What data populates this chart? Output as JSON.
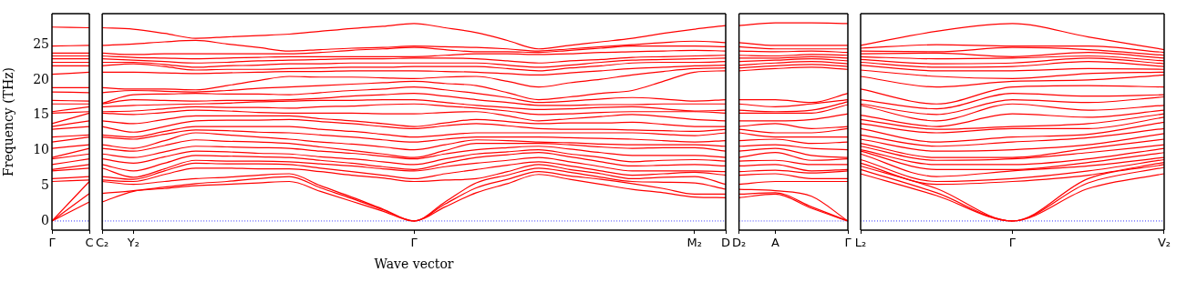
{
  "chart_data": [
    {
      "type": "line",
      "ylabel": "Frequency (THz)",
      "categories": [
        "Γ",
        "C"
      ],
      "ylim": [
        -1.3,
        29.4
      ],
      "yticks": [
        0,
        5,
        10,
        15,
        20,
        25
      ],
      "marker": "none",
      "line_style": "solid",
      "ref_lines": [
        {
          "axis": "y",
          "value": 0,
          "color": "#0000ff",
          "line_style": "dotted"
        }
      ],
      "series": [
        {
          "color": "#ff0000",
          "values": [
            0,
            2.7
          ]
        },
        {
          "color": "#ff0000",
          "values": [
            0,
            3.9
          ]
        },
        {
          "color": "#ff0000",
          "values": [
            0,
            5.6
          ]
        },
        {
          "color": "#ff0000",
          "values": [
            5.6,
            5.8
          ]
        },
        {
          "color": "#ff0000",
          "values": [
            6.0,
            6.3
          ]
        },
        {
          "color": "#ff0000",
          "values": [
            7.1,
            7.5
          ]
        },
        {
          "color": "#ff0000",
          "values": [
            7.3,
            8.0
          ]
        },
        {
          "color": "#ff0000",
          "values": [
            8.0,
            8.8
          ]
        },
        {
          "color": "#ff0000",
          "values": [
            8.8,
            9.5
          ]
        },
        {
          "color": "#ff0000",
          "values": [
            9.0,
            10.3
          ]
        },
        {
          "color": "#ff0000",
          "values": [
            10.3,
            10.8
          ]
        },
        {
          "color": "#ff0000",
          "values": [
            11.2,
            11.9
          ]
        },
        {
          "color": "#ff0000",
          "values": [
            11.9,
            12.2
          ]
        },
        {
          "color": "#ff0000",
          "values": [
            13.0,
            13.4
          ]
        },
        {
          "color": "#ff0000",
          "values": [
            13.4,
            14.2
          ]
        },
        {
          "color": "#ff0000",
          "values": [
            13.8,
            15.3
          ]
        },
        {
          "color": "#ff0000",
          "values": [
            15.3,
            15.5
          ]
        },
        {
          "color": "#ff0000",
          "values": [
            15.5,
            16.2
          ]
        },
        {
          "color": "#ff0000",
          "values": [
            16.6,
            16.6
          ]
        },
        {
          "color": "#ff0000",
          "values": [
            17.1,
            17.0
          ]
        },
        {
          "color": "#ff0000",
          "values": [
            18.3,
            18.2
          ]
        },
        {
          "color": "#ff0000",
          "values": [
            18.9,
            18.9
          ]
        },
        {
          "color": "#ff0000",
          "values": [
            20.8,
            21.1
          ]
        },
        {
          "color": "#ff0000",
          "values": [
            22.0,
            22.0
          ]
        },
        {
          "color": "#ff0000",
          "values": [
            22.5,
            22.5
          ]
        },
        {
          "color": "#ff0000",
          "values": [
            23.0,
            23.0
          ]
        },
        {
          "color": "#ff0000",
          "values": [
            23.4,
            23.4
          ]
        },
        {
          "color": "#ff0000",
          "values": [
            23.8,
            23.8
          ]
        },
        {
          "color": "#ff0000",
          "values": [
            24.8,
            24.9
          ]
        },
        {
          "color": "#ff0000",
          "values": [
            27.5,
            27.4
          ]
        }
      ]
    },
    {
      "type": "line",
      "xlabel": "Wave vector",
      "tick_labels": "x",
      "categories": [
        "C₂",
        "Y₂",
        null,
        null,
        null,
        null,
        null,
        null,
        null,
        null,
        "Γ",
        null,
        null,
        null,
        null,
        null,
        null,
        null,
        null,
        "M₂",
        "D"
      ],
      "ylim": [
        -1.3,
        29.4
      ],
      "yticks": [
        0,
        5,
        10,
        15,
        20,
        25
      ],
      "marker": "none",
      "line_style": "solid",
      "ref_lines": [
        {
          "axis": "y",
          "value": 0,
          "color": "#0000ff",
          "line_style": "dotted"
        }
      ],
      "series": [
        {
          "color": "#ff0000",
          "values": [
            2.7,
            4.2,
            4.6,
            5.0,
            5.2,
            5.4,
            5.6,
            4.2,
            2.8,
            1.4,
            0,
            2.0,
            4.0,
            5.3,
            6.6,
            5.9,
            5.2,
            4.5,
            4.0,
            3.4,
            3.3
          ]
        },
        {
          "color": "#ff0000",
          "values": [
            3.9,
            4.3,
            4.8,
            5.3,
            5.6,
            6.0,
            6.3,
            4.7,
            3.2,
            1.6,
            0,
            2.4,
            4.7,
            5.9,
            7.0,
            6.4,
            5.9,
            5.3,
            4.6,
            3.8,
            3.8
          ]
        },
        {
          "color": "#ff0000",
          "values": [
            5.6,
            5.2,
            5.6,
            6.0,
            6.2,
            6.5,
            6.7,
            5.0,
            3.4,
            1.7,
            0,
            2.7,
            5.4,
            6.5,
            7.5,
            6.9,
            6.2,
            5.6,
            5.5,
            5.4,
            4.5
          ]
        },
        {
          "color": "#ff0000",
          "values": [
            5.8,
            5.6,
            6.6,
            7.5,
            7.5,
            7.4,
            7.4,
            7.0,
            6.5,
            6.1,
            5.6,
            5.8,
            6.0,
            7.0,
            8.0,
            7.3,
            6.7,
            6.0,
            6.2,
            6.3,
            5.2
          ]
        },
        {
          "color": "#ff0000",
          "values": [
            6.3,
            5.9,
            7.1,
            8.2,
            8.1,
            8.1,
            8.0,
            7.5,
            7.0,
            6.5,
            6.0,
            6.7,
            7.3,
            7.9,
            8.4,
            7.8,
            7.1,
            6.5,
            6.7,
            6.9,
            6.5
          ]
        },
        {
          "color": "#ff0000",
          "values": [
            7.5,
            6.2,
            7.4,
            8.6,
            8.5,
            8.5,
            8.4,
            8.1,
            7.8,
            7.4,
            7.1,
            7.7,
            8.2,
            8.6,
            9.0,
            8.4,
            7.7,
            7.1,
            7.1,
            7.1,
            7.0
          ]
        },
        {
          "color": "#ff0000",
          "values": [
            8.0,
            7.1,
            8.2,
            9.3,
            9.2,
            9.1,
            9.0,
            8.6,
            8.2,
            7.7,
            7.3,
            8.2,
            9.0,
            9.4,
            9.7,
            9.1,
            8.4,
            7.8,
            7.9,
            8.0,
            7.8
          ]
        },
        {
          "color": "#ff0000",
          "values": [
            8.8,
            8.2,
            9.1,
            9.9,
            9.8,
            9.6,
            9.5,
            9.1,
            8.8,
            8.4,
            8.0,
            8.8,
            9.5,
            9.8,
            10.1,
            9.5,
            9.0,
            8.4,
            8.6,
            8.7,
            8.5
          ]
        },
        {
          "color": "#ff0000",
          "values": [
            9.5,
            9.0,
            9.8,
            10.6,
            10.5,
            10.4,
            10.3,
            9.9,
            9.6,
            9.2,
            8.8,
            9.5,
            10.1,
            10.4,
            10.6,
            10.2,
            9.7,
            9.3,
            9.3,
            9.3,
            9.0
          ]
        },
        {
          "color": "#ff0000",
          "values": [
            10.3,
            9.9,
            10.7,
            11.5,
            11.3,
            11.2,
            11.0,
            10.5,
            10.0,
            9.5,
            9.0,
            10.0,
            11.0,
            11.0,
            11.0,
            10.8,
            10.5,
            10.3,
            10.4,
            10.4,
            9.9
          ]
        },
        {
          "color": "#ff0000",
          "values": [
            10.8,
            10.3,
            11.4,
            12.5,
            12.2,
            11.9,
            11.6,
            11.2,
            10.9,
            10.5,
            10.1,
            10.8,
            11.5,
            11.4,
            11.2,
            11.1,
            10.9,
            10.8,
            10.8,
            10.8,
            10.6
          ]
        },
        {
          "color": "#ff0000",
          "values": [
            11.9,
            11.6,
            12.3,
            12.9,
            12.8,
            12.6,
            12.5,
            12.2,
            11.9,
            11.5,
            11.2,
            11.6,
            11.9,
            11.9,
            11.9,
            11.8,
            11.7,
            11.6,
            11.4,
            11.2,
            11.4
          ]
        },
        {
          "color": "#ff0000",
          "values": [
            12.2,
            11.9,
            12.7,
            13.4,
            13.4,
            13.4,
            13.4,
            13.0,
            12.7,
            12.3,
            11.9,
            12.2,
            12.5,
            12.5,
            12.5,
            12.5,
            12.5,
            12.5,
            12.3,
            12.1,
            12.5
          ]
        },
        {
          "color": "#ff0000",
          "values": [
            13.4,
            12.6,
            13.4,
            14.2,
            14.3,
            14.3,
            14.4,
            14.1,
            13.8,
            13.4,
            13.1,
            13.5,
            13.8,
            13.5,
            13.1,
            13.0,
            13.0,
            12.9,
            12.8,
            12.7,
            13.0
          ]
        },
        {
          "color": "#ff0000",
          "values": [
            14.2,
            13.8,
            14.4,
            14.9,
            14.9,
            14.9,
            14.9,
            14.5,
            14.2,
            13.8,
            13.4,
            13.9,
            14.4,
            14.1,
            13.8,
            13.9,
            13.9,
            14.0,
            13.7,
            13.4,
            13.4
          ]
        },
        {
          "color": "#ff0000",
          "values": [
            15.3,
            15.1,
            15.4,
            15.7,
            15.6,
            15.4,
            15.3,
            15.3,
            15.3,
            15.2,
            15.2,
            15.4,
            15.5,
            14.9,
            14.2,
            14.5,
            14.8,
            15.1,
            14.8,
            14.4,
            14.2
          ]
        },
        {
          "color": "#ff0000",
          "values": [
            15.5,
            15.6,
            15.9,
            16.2,
            16.1,
            16.1,
            16.0,
            16.2,
            16.3,
            16.5,
            16.6,
            16.3,
            16.0,
            15.6,
            15.1,
            15.2,
            15.4,
            15.5,
            15.5,
            15.5,
            15.3
          ]
        },
        {
          "color": "#ff0000",
          "values": [
            16.2,
            16.4,
            16.5,
            16.6,
            16.7,
            16.9,
            17.0,
            17.1,
            17.1,
            17.2,
            17.2,
            16.8,
            16.4,
            16.1,
            15.8,
            15.9,
            16.1,
            16.2,
            15.9,
            15.6,
            15.7
          ]
        },
        {
          "color": "#ff0000",
          "values": [
            16.6,
            17.2,
            17.1,
            17.0,
            17.1,
            17.1,
            17.2,
            17.4,
            17.7,
            17.9,
            18.1,
            17.7,
            17.2,
            16.8,
            16.4,
            16.4,
            16.5,
            16.5,
            16.6,
            16.6,
            16.6
          ]
        },
        {
          "color": "#ff0000",
          "values": [
            16.7,
            17.9,
            18.0,
            18.1,
            18.0,
            18.0,
            17.9,
            18.2,
            18.5,
            18.7,
            19.0,
            18.6,
            18.1,
            17.5,
            16.8,
            17.0,
            17.3,
            17.5,
            17.3,
            17.0,
            17.2
          ]
        },
        {
          "color": "#ff0000",
          "values": [
            18.2,
            18.5,
            18.4,
            18.3,
            18.5,
            18.8,
            19.0,
            19.2,
            19.4,
            19.6,
            19.8,
            19.5,
            19.2,
            18.2,
            17.2,
            17.6,
            18.1,
            18.5,
            19.8,
            21.1,
            21.3
          ]
        },
        {
          "color": "#ff0000",
          "values": [
            18.9,
            18.7,
            18.7,
            18.6,
            19.2,
            19.9,
            20.5,
            20.4,
            20.4,
            20.3,
            20.2,
            20.4,
            20.5,
            19.8,
            19.0,
            19.6,
            20.1,
            20.7,
            21.2,
            21.6,
            21.7
          ]
        },
        {
          "color": "#ff0000",
          "values": [
            21.1,
            21.1,
            21.0,
            20.9,
            21.0,
            21.1,
            21.2,
            21.2,
            21.3,
            21.3,
            21.3,
            21.2,
            21.1,
            20.9,
            20.7,
            21.0,
            21.3,
            21.6,
            21.8,
            22.0,
            22.1
          ]
        },
        {
          "color": "#ff0000",
          "values": [
            22.0,
            22.3,
            21.9,
            21.4,
            21.5,
            21.5,
            21.6,
            21.7,
            21.8,
            21.8,
            21.9,
            21.9,
            21.9,
            21.6,
            21.3,
            21.7,
            22.0,
            22.4,
            22.5,
            22.5,
            22.6
          ]
        },
        {
          "color": "#ff0000",
          "values": [
            22.5,
            22.5,
            22.2,
            21.8,
            22.0,
            22.1,
            22.3,
            22.3,
            22.4,
            22.4,
            22.4,
            22.4,
            22.4,
            22.1,
            21.8,
            22.1,
            22.5,
            22.8,
            22.9,
            23.0,
            23.1
          ]
        },
        {
          "color": "#ff0000",
          "values": [
            23.0,
            22.8,
            22.6,
            22.4,
            22.5,
            22.7,
            22.8,
            22.9,
            23.0,
            23.0,
            23.1,
            23.1,
            23.0,
            22.7,
            22.4,
            22.7,
            22.9,
            23.2,
            23.3,
            23.4,
            23.5
          ]
        },
        {
          "color": "#ff0000",
          "values": [
            23.4,
            23.2,
            23.1,
            23.0,
            23.1,
            23.2,
            23.3,
            23.3,
            23.3,
            23.3,
            23.3,
            23.5,
            23.7,
            23.7,
            23.6,
            23.7,
            23.9,
            24.0,
            24.1,
            24.2,
            24.1
          ]
        },
        {
          "color": "#ff0000",
          "values": [
            23.8,
            23.6,
            23.7,
            23.7,
            23.7,
            23.7,
            23.7,
            23.9,
            24.2,
            24.4,
            24.6,
            24.3,
            24.0,
            24.0,
            23.9,
            24.2,
            24.5,
            24.8,
            24.8,
            24.8,
            24.7
          ]
        },
        {
          "color": "#ff0000",
          "values": [
            24.9,
            25.1,
            25.4,
            25.6,
            25.1,
            24.6,
            24.1,
            24.3,
            24.5,
            24.6,
            24.8,
            24.7,
            24.6,
            24.4,
            24.1,
            24.4,
            24.7,
            25.0,
            25.3,
            25.5,
            25.3
          ]
        },
        {
          "color": "#ff0000",
          "values": [
            27.4,
            27.2,
            26.6,
            25.9,
            26.1,
            26.3,
            26.5,
            26.9,
            27.3,
            27.6,
            28.0,
            27.4,
            26.7,
            25.6,
            24.4,
            24.9,
            25.4,
            25.9,
            26.6,
            27.2,
            27.7
          ]
        }
      ]
    },
    {
      "type": "line",
      "tick_labels": "x",
      "categories": [
        "D₂",
        "A",
        null,
        "Γ"
      ],
      "ylim": [
        -1.3,
        29.4
      ],
      "yticks": [
        0,
        5,
        10,
        15,
        20,
        25
      ],
      "marker": "none",
      "line_style": "solid",
      "ref_lines": [
        {
          "axis": "y",
          "value": 0,
          "color": "#0000ff",
          "line_style": "dotted"
        }
      ],
      "series": [
        {
          "color": "#ff0000",
          "values": [
            3.3,
            3.8,
            1.8,
            0
          ]
        },
        {
          "color": "#ff0000",
          "values": [
            3.8,
            4.0,
            2.0,
            0
          ]
        },
        {
          "color": "#ff0000",
          "values": [
            4.5,
            4.3,
            3.5,
            0
          ]
        },
        {
          "color": "#ff0000",
          "values": [
            5.2,
            5.6,
            5.6,
            5.6
          ]
        },
        {
          "color": "#ff0000",
          "values": [
            6.5,
            6.7,
            6.0,
            6.0
          ]
        },
        {
          "color": "#ff0000",
          "values": [
            7.0,
            7.2,
            6.8,
            7.1
          ]
        },
        {
          "color": "#ff0000",
          "values": [
            7.8,
            8.0,
            7.1,
            7.3
          ]
        },
        {
          "color": "#ff0000",
          "values": [
            8.5,
            8.6,
            8.0,
            8.0
          ]
        },
        {
          "color": "#ff0000",
          "values": [
            9.0,
            9.7,
            8.6,
            8.8
          ]
        },
        {
          "color": "#ff0000",
          "values": [
            9.9,
            10.3,
            9.3,
            9.0
          ]
        },
        {
          "color": "#ff0000",
          "values": [
            10.6,
            10.8,
            10.3,
            10.1
          ]
        },
        {
          "color": "#ff0000",
          "values": [
            11.4,
            11.6,
            11.0,
            11.2
          ]
        },
        {
          "color": "#ff0000",
          "values": [
            12.5,
            11.9,
            11.9,
            11.9
          ]
        },
        {
          "color": "#ff0000",
          "values": [
            13.0,
            12.5,
            12.5,
            13.1
          ]
        },
        {
          "color": "#ff0000",
          "values": [
            13.4,
            13.8,
            13.1,
            13.4
          ]
        },
        {
          "color": "#ff0000",
          "values": [
            14.2,
            14.2,
            14.4,
            15.2
          ]
        },
        {
          "color": "#ff0000",
          "values": [
            15.3,
            15.3,
            15.3,
            16.5
          ]
        },
        {
          "color": "#ff0000",
          "values": [
            15.7,
            15.5,
            15.7,
            16.9
          ]
        },
        {
          "color": "#ff0000",
          "values": [
            16.6,
            16.2,
            16.6,
            17.2
          ]
        },
        {
          "color": "#ff0000",
          "values": [
            17.2,
            17.2,
            16.8,
            18.1
          ]
        },
        {
          "color": "#ff0000",
          "values": [
            21.3,
            21.6,
            21.8,
            21.5
          ]
        },
        {
          "color": "#ff0000",
          "values": [
            21.7,
            22.0,
            22.2,
            21.9
          ]
        },
        {
          "color": "#ff0000",
          "values": [
            22.1,
            22.4,
            22.6,
            22.3
          ]
        },
        {
          "color": "#ff0000",
          "values": [
            22.6,
            22.8,
            23.0,
            22.7
          ]
        },
        {
          "color": "#ff0000",
          "values": [
            23.1,
            23.1,
            23.3,
            23.1
          ]
        },
        {
          "color": "#ff0000",
          "values": [
            23.5,
            23.4,
            23.6,
            23.5
          ]
        },
        {
          "color": "#ff0000",
          "values": [
            24.1,
            24.0,
            24.1,
            23.9
          ]
        },
        {
          "color": "#ff0000",
          "values": [
            24.7,
            24.4,
            24.4,
            24.4
          ]
        },
        {
          "color": "#ff0000",
          "values": [
            25.3,
            24.9,
            24.9,
            24.9
          ]
        },
        {
          "color": "#ff0000",
          "values": [
            27.7,
            28.1,
            28.1,
            28.0
          ]
        }
      ]
    },
    {
      "type": "line",
      "tick_labels": "x",
      "categories": [
        "L₂",
        null,
        "Γ",
        null,
        "V₂"
      ],
      "ylim": [
        -1.3,
        29.4
      ],
      "yticks": [
        0,
        5,
        10,
        15,
        20,
        25
      ],
      "marker": "none",
      "line_style": "solid",
      "ref_lines": [
        {
          "axis": "y",
          "value": 0,
          "color": "#0000ff",
          "line_style": "dotted"
        }
      ],
      "series": [
        {
          "color": "#ff0000",
          "values": [
            6.7,
            3.6,
            0,
            4.6,
            6.7
          ]
        },
        {
          "color": "#ff0000",
          "values": [
            7.3,
            4.0,
            0,
            5.4,
            7.6
          ]
        },
        {
          "color": "#ff0000",
          "values": [
            7.8,
            4.6,
            0,
            6.0,
            8.0
          ]
        },
        {
          "color": "#ff0000",
          "values": [
            8.2,
            5.2,
            5.6,
            6.5,
            8.3
          ]
        },
        {
          "color": "#ff0000",
          "values": [
            8.7,
            5.6,
            6.0,
            7.1,
            8.7
          ]
        },
        {
          "color": "#ff0000",
          "values": [
            9.5,
            6.3,
            7.1,
            7.8,
            9.0
          ]
        },
        {
          "color": "#ff0000",
          "values": [
            9.9,
            7.3,
            7.3,
            8.3,
            9.7
          ]
        },
        {
          "color": "#ff0000",
          "values": [
            10.1,
            8.0,
            8.0,
            8.8,
            10.3
          ]
        },
        {
          "color": "#ff0000",
          "values": [
            10.6,
            8.6,
            8.8,
            9.7,
            10.8
          ]
        },
        {
          "color": "#ff0000",
          "values": [
            11.0,
            9.0,
            9.0,
            10.3,
            11.6
          ]
        },
        {
          "color": "#ff0000",
          "values": [
            11.6,
            9.9,
            10.1,
            10.8,
            12.4
          ]
        },
        {
          "color": "#ff0000",
          "values": [
            12.2,
            10.6,
            11.2,
            11.8,
            13.1
          ]
        },
        {
          "color": "#ff0000",
          "values": [
            13.1,
            11.2,
            11.9,
            12.3,
            14.0
          ]
        },
        {
          "color": "#ff0000",
          "values": [
            13.8,
            12.5,
            13.1,
            13.1,
            14.7
          ]
        },
        {
          "color": "#ff0000",
          "values": [
            14.4,
            13.0,
            13.4,
            13.8,
            15.2
          ]
        },
        {
          "color": "#ff0000",
          "values": [
            15.0,
            13.4,
            15.2,
            14.7,
            15.7
          ]
        },
        {
          "color": "#ff0000",
          "values": [
            16.4,
            14.2,
            16.6,
            15.7,
            16.4
          ]
        },
        {
          "color": "#ff0000",
          "values": [
            16.6,
            15.1,
            17.2,
            16.8,
            17.6
          ]
        },
        {
          "color": "#ff0000",
          "values": [
            17.2,
            15.9,
            18.1,
            17.7,
            17.9
          ]
        },
        {
          "color": "#ff0000",
          "values": [
            18.7,
            16.6,
            19.0,
            19.2,
            19.0
          ]
        },
        {
          "color": "#ff0000",
          "values": [
            20.5,
            19.0,
            19.8,
            20.0,
            20.7
          ]
        },
        {
          "color": "#ff0000",
          "values": [
            21.4,
            20.5,
            20.2,
            20.9,
            21.1
          ]
        },
        {
          "color": "#ff0000",
          "values": [
            22.1,
            21.3,
            21.3,
            21.6,
            21.5
          ]
        },
        {
          "color": "#ff0000",
          "values": [
            22.5,
            21.8,
            21.9,
            22.6,
            21.9
          ]
        },
        {
          "color": "#ff0000",
          "values": [
            22.9,
            22.3,
            22.4,
            23.1,
            22.3
          ]
        },
        {
          "color": "#ff0000",
          "values": [
            23.3,
            23.0,
            23.1,
            23.4,
            22.7
          ]
        },
        {
          "color": "#ff0000",
          "values": [
            23.7,
            23.8,
            23.3,
            23.9,
            23.1
          ]
        },
        {
          "color": "#ff0000",
          "values": [
            24.1,
            24.0,
            24.6,
            24.3,
            23.5
          ]
        },
        {
          "color": "#ff0000",
          "values": [
            24.5,
            25.0,
            24.8,
            24.8,
            23.9
          ]
        },
        {
          "color": "#ff0000",
          "values": [
            24.9,
            26.9,
            28.0,
            26.1,
            24.3
          ]
        }
      ]
    }
  ]
}
